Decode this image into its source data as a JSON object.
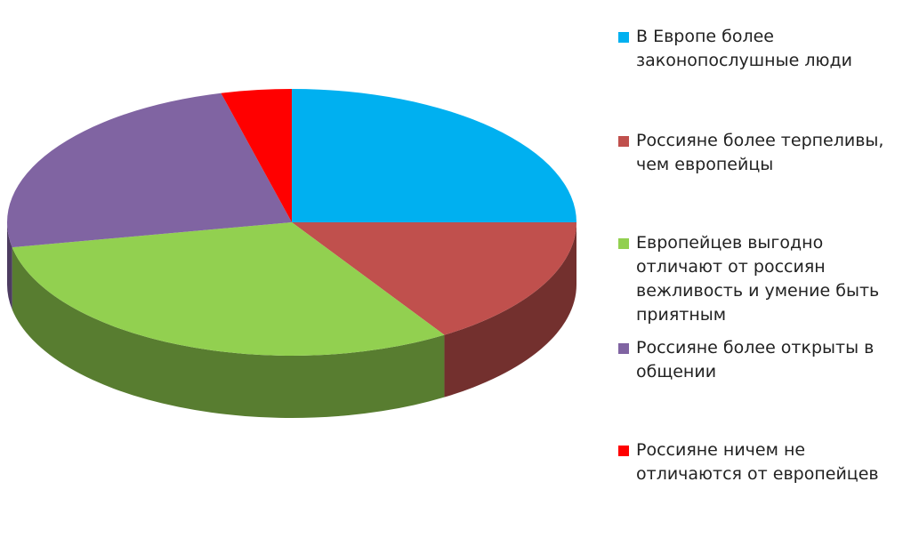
{
  "chart_data": {
    "type": "pie3d",
    "categories": [
      "В Европе более законопослушные люди",
      "Россияне более терпеливы, чем европейцы",
      "Европейцев выгодно отличают от россиян вежливость и умение быть приятным",
      "Россияне более открыты в общении",
      "Россияне ничем не отличаются от европейцев"
    ],
    "values": [
      25,
      16,
      31,
      24,
      4
    ],
    "colors": [
      "#00b0f0",
      "#c0504d",
      "#92d050",
      "#8064a2",
      "#ff0000"
    ],
    "legend": "right"
  }
}
